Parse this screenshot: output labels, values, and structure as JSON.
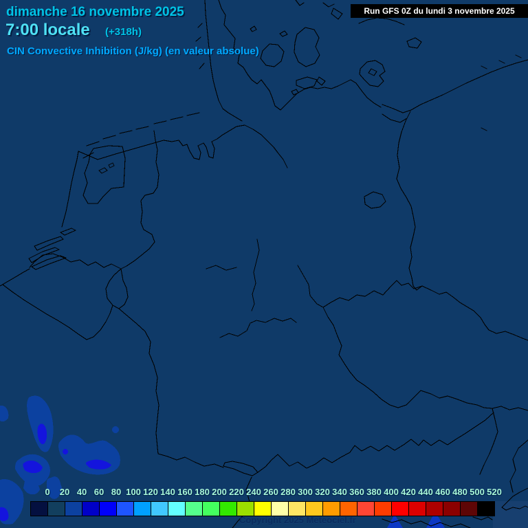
{
  "header": {
    "date": "dimanche 16 novembre 2025",
    "time": "7:00 locale",
    "offset": "(+318h)",
    "parameter": "CIN Convective Inhibition (J/kg) (en valeur absolue)"
  },
  "run_bar": {
    "label": "Run GFS 0Z du lundi 3 novembre 2025"
  },
  "footer": {
    "copyright": "Copyright 2025 Meteociel.fr"
  },
  "legend": {
    "unit": "J/kg",
    "values": [
      "0",
      "20",
      "40",
      "60",
      "80",
      "100",
      "120",
      "140",
      "160",
      "180",
      "200",
      "220",
      "240",
      "260",
      "280",
      "300",
      "320",
      "340",
      "360",
      "380",
      "400",
      "420",
      "440",
      "460",
      "480",
      "500",
      "520"
    ],
    "cell_colors": [
      "#041040",
      "#123f5e",
      "#0c41a0",
      "#0000c8",
      "#0000fa",
      "#1e55ff",
      "#00a0ff",
      "#41c8ff",
      "#63ffff",
      "#55ff8c",
      "#44ff5f",
      "#33e800",
      "#9ce000",
      "#ffff00",
      "#ffffa8",
      "#ffe664",
      "#ffc81e",
      "#ff9c00",
      "#ff6400",
      "#ff4634",
      "#ff3c00",
      "#ff0000",
      "#dc0000",
      "#ae0000",
      "#8b0000",
      "#5e0606",
      "#000000"
    ]
  },
  "colors": {
    "map_background": "#0f3a68",
    "line": "#010101",
    "header_date": "#00c4e6",
    "header_time": "#4fe1f4",
    "header_parameter": "#00a9ff",
    "legend_label": "#a9f6d8",
    "run_bar_background": "#000000",
    "run_bar_text": "#ffffff",
    "copyright_text": "#0a2c5e",
    "cin_area_mid": "#0c41a0",
    "cin_area_bright": "#1414dd"
  }
}
